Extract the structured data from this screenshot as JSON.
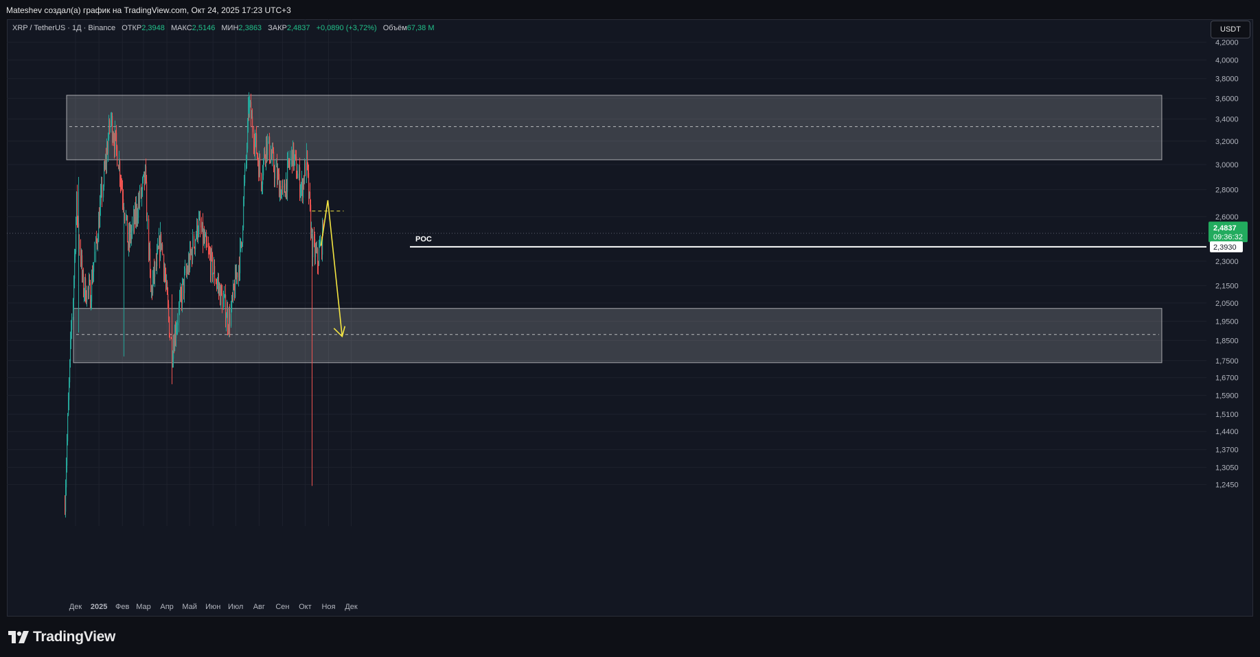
{
  "header": {
    "attribution": "Mateshev создал(а) график на TradingView.com, Окт 24, 2025 17:23 UTC+3"
  },
  "legend": {
    "symbol": "XRP / TetherUS · 1Д · Binance",
    "open_label": "ОТКР",
    "open": "2,3948",
    "high_label": "МАКС",
    "high": "2,5146",
    "low_label": "МИН",
    "low": "2,3863",
    "close_label": "ЗАКР",
    "close": "2,4837",
    "change": "+0,0890 (+3,72%)",
    "volume_label": "Объём",
    "volume": "67,38 M"
  },
  "currency_button": "USDT",
  "price_tags": {
    "last_price": "2,4837",
    "countdown": "09:36:32",
    "poc_price": "2,3930"
  },
  "poc_label": "POC",
  "footer": {
    "brand": "TradingView"
  },
  "colors": {
    "up": "#26a69a",
    "down": "#ef5350",
    "last_price_tag": "#22ab5e",
    "projection": "#f5e642",
    "poc_line": "#ffffff"
  },
  "chart_data": {
    "type": "candlestick",
    "scale": "log",
    "y_ticks": [
      "4,2000",
      "4,0000",
      "3,8000",
      "3,6000",
      "3,4000",
      "3,2000",
      "3,0000",
      "2,8000",
      "2,6000",
      "2,3000",
      "2,1500",
      "2,0500",
      "1,9500",
      "1,8500",
      "1,7500",
      "1,6700",
      "1,5900",
      "1,5100",
      "1,4400",
      "1,3700",
      "1,3050",
      "1,2450"
    ],
    "x_ticks": [
      "Дек",
      "2025",
      "Фев",
      "Мар",
      "Апр",
      "Май",
      "Июн",
      "Июл",
      "Авг",
      "Сен",
      "Окт",
      "Ноя",
      "Дек"
    ],
    "zones": [
      {
        "name": "resistance",
        "top": 3.63,
        "bottom": 3.04,
        "mid": 3.33
      },
      {
        "name": "support",
        "top": 2.02,
        "bottom": 1.74,
        "mid": 1.88
      }
    ],
    "poc": 2.393,
    "last_price": 2.4837,
    "projection": [
      2.4,
      2.72,
      1.87
    ],
    "key_points": [
      {
        "date": "2024-11-16",
        "close": 1.2
      },
      {
        "date": "2024-12-02",
        "close": 2.7
      },
      {
        "date": "2024-12-10",
        "close": 2.15
      },
      {
        "date": "2024-12-20",
        "close": 2.1
      },
      {
        "date": "2025-01-16",
        "close": 3.4
      },
      {
        "date": "2025-01-25",
        "close": 3.1
      },
      {
        "date": "2025-02-03",
        "close": 2.7
      },
      {
        "date": "2025-02-08",
        "close": 2.4
      },
      {
        "date": "2025-03-03",
        "close": 2.9
      },
      {
        "date": "2025-03-10",
        "close": 2.1
      },
      {
        "date": "2025-03-24",
        "close": 2.45
      },
      {
        "date": "2025-04-07",
        "close": 1.8
      },
      {
        "date": "2025-04-20",
        "close": 2.1
      },
      {
        "date": "2025-05-12",
        "close": 2.55
      },
      {
        "date": "2025-06-22",
        "close": 1.95
      },
      {
        "date": "2025-07-08",
        "close": 2.4
      },
      {
        "date": "2025-07-18",
        "close": 3.55
      },
      {
        "date": "2025-08-03",
        "close": 2.9
      },
      {
        "date": "2025-08-10",
        "close": 3.2
      },
      {
        "date": "2025-09-01",
        "close": 2.75
      },
      {
        "date": "2025-09-13",
        "close": 3.1
      },
      {
        "date": "2025-09-26",
        "close": 2.8
      },
      {
        "date": "2025-10-02",
        "close": 3.02
      },
      {
        "date": "2025-10-10",
        "close": 2.4
      },
      {
        "date": "2025-10-17",
        "close": 2.3
      },
      {
        "date": "2025-10-24",
        "close": 2.4837
      }
    ]
  }
}
